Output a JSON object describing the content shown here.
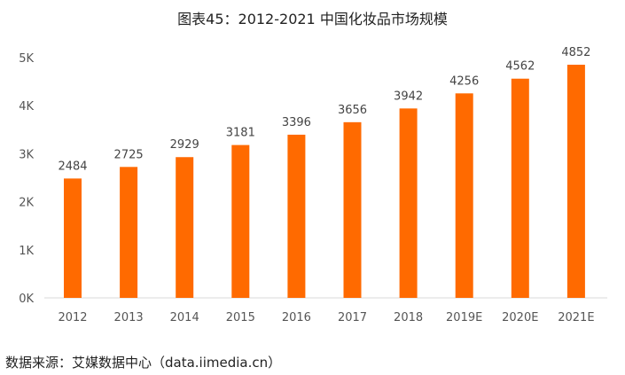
{
  "chart_data": {
    "type": "bar",
    "title": "图表45：2012-2021 中国化妆品市场规模",
    "categories": [
      "2012",
      "2013",
      "2014",
      "2015",
      "2016",
      "2017",
      "2018",
      "2019E",
      "2020E",
      "2021E"
    ],
    "values": [
      2484,
      2725,
      2929,
      3181,
      3396,
      3656,
      3942,
      4256,
      4562,
      4852
    ],
    "xlabel": "",
    "ylabel": "",
    "ylim": [
      0,
      5000
    ],
    "yticks": [
      {
        "v": 0,
        "label": "0K"
      },
      {
        "v": 1000,
        "label": "1K"
      },
      {
        "v": 2000,
        "label": "2K"
      },
      {
        "v": 3000,
        "label": "3K"
      },
      {
        "v": 4000,
        "label": "4K"
      },
      {
        "v": 5000,
        "label": "5K"
      }
    ],
    "grid": false,
    "legend": "none",
    "bar_color": "#FF6A00"
  },
  "source": "数据来源：艾媒数据中心（data.iimedia.cn）"
}
